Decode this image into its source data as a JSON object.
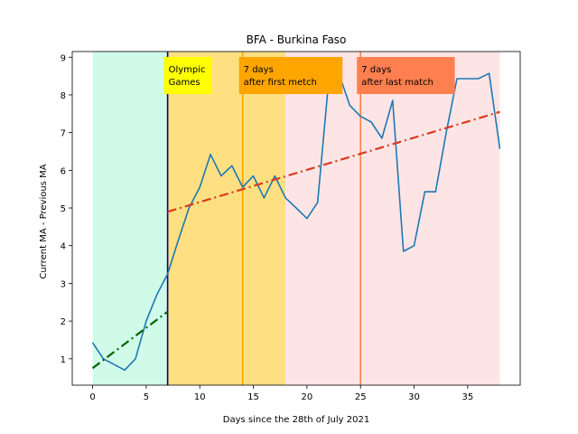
{
  "chart_data": {
    "type": "line",
    "title": "BFA - Burkina Faso",
    "xlabel": "Days since the 28th of July 2021",
    "ylabel": "Current MA - Previous MA",
    "xlim": [
      -1.9,
      39.9
    ],
    "ylim": [
      0.3,
      9.15
    ],
    "xticks": [
      0,
      5,
      10,
      15,
      20,
      25,
      30,
      35
    ],
    "yticks": [
      1,
      2,
      3,
      4,
      5,
      6,
      7,
      8,
      9
    ],
    "grid": false,
    "regions": [
      {
        "x_start": 0,
        "x_end": 7,
        "color": "#d0fbe9"
      },
      {
        "x_start": 7,
        "x_end": 18,
        "color": "#fee082"
      },
      {
        "x_start": 18,
        "x_end": 38,
        "color": "#fde5e5"
      }
    ],
    "vlines": [
      {
        "x": 7,
        "color": "#00008b"
      },
      {
        "x": 14,
        "color": "#ffa500"
      },
      {
        "x": 25,
        "color": "#ff7f50"
      }
    ],
    "annotations": [
      {
        "x": 7,
        "lines": [
          "Olympic",
          "Games"
        ],
        "bg": "#ffff00"
      },
      {
        "x": 14,
        "lines": [
          "7 days",
          "after first metch"
        ],
        "bg": "#ffa500"
      },
      {
        "x": 25,
        "lines": [
          "7 days",
          "after last match"
        ],
        "bg": "#ff7f50"
      }
    ],
    "series": [
      {
        "color": "#1f77b4",
        "x": [
          0,
          1,
          2,
          3,
          4,
          5,
          6,
          7,
          8,
          9,
          10,
          11,
          12,
          13,
          14,
          15,
          16,
          17,
          18,
          19,
          20,
          21,
          22,
          23,
          24,
          25,
          26,
          27,
          28,
          29,
          30,
          31,
          32,
          33,
          34,
          35,
          36,
          37,
          38
        ],
        "y": [
          1.43,
          1.0,
          0.85,
          0.7,
          1.0,
          2.0,
          2.7,
          3.25,
          4.15,
          5.0,
          5.55,
          6.42,
          5.85,
          6.12,
          5.55,
          5.85,
          5.27,
          5.85,
          5.27,
          5.0,
          4.72,
          5.15,
          8.28,
          8.55,
          7.72,
          7.43,
          7.28,
          6.85,
          7.85,
          3.85,
          4.0,
          5.43,
          5.43,
          7.0,
          8.43,
          8.43,
          8.43,
          8.57,
          6.57
        ]
      },
      {
        "color": "#006400",
        "style": "dashdot",
        "x": [
          0,
          7
        ],
        "y": [
          0.75,
          2.25
        ]
      },
      {
        "color": "#dc3a1e",
        "style": "dashdot",
        "x": [
          7,
          38
        ],
        "y": [
          4.9,
          7.55
        ]
      }
    ]
  }
}
